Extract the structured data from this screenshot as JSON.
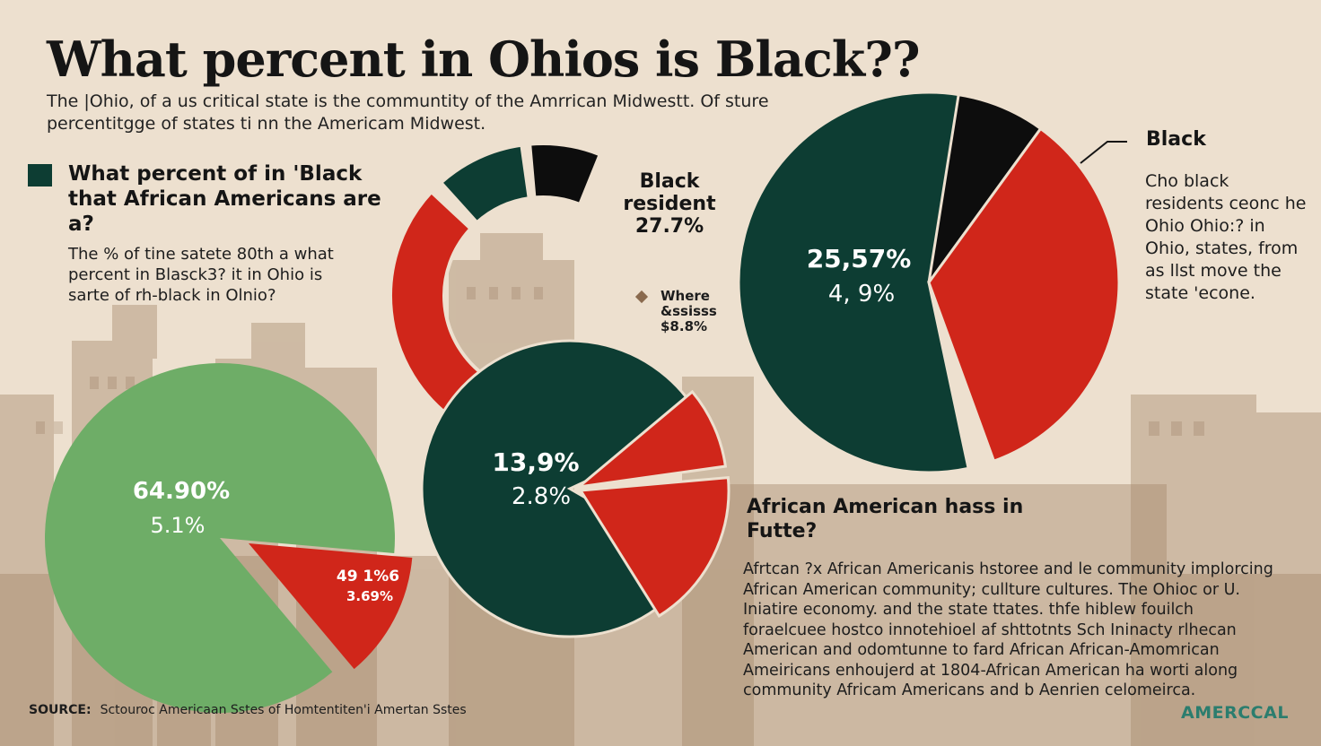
{
  "title": "What percent in Ohios is Black??",
  "subtitle": "The |Ohio, of a us critical state is the communtity of the Amrrican Midwestt. Of sture percentitgge of states ti nn the Americam Midwest.",
  "question": {
    "heading": "What percent of in 'Black that African Americans are a?",
    "body": "The % of tine satete 80th a what percent in Blasck3? it in Ohio is sarte of rh-black in Olnio?"
  },
  "callouts": {
    "mid_line1": "Black",
    "mid_line2": "resident",
    "mid_line3": "27.7%",
    "small_line1": "Where",
    "small_line2": "&ssisss",
    "small_line3": "$8.8%",
    "right_title": "Black",
    "right_body": "Cho black residents ceonc he Ohio Ohio:? in Ohio, states, from as llst move the state 'econe."
  },
  "section": {
    "heading": "African American hass in Futte?",
    "body": "Afrtcan ?x African Americanis hstoree and le community implorcing African American community; cullture cultures. The Ohioc or U. Iniatire economy. and the state ttates. thfe hiblew fouilch foraelcuee hostco innotehioel af shttotnts Sch Ininacty rlhecan American and odomtunne to fard African African-Amomrican Ameiricans enhoujerd at 1804-African American ha worti along community Africam Americans and b Aenrien celomeirca."
  },
  "source": {
    "label": "SOURCE:",
    "text": "Sctouroc Americaan Sstes of Homtentiten'i Amertan Sstes"
  },
  "brand": "AMERCCAL",
  "colors": {
    "background": "#ede0cf",
    "green_dark": "#0d3d33",
    "red": "#d0261a",
    "black": "#0d0d0d",
    "green_light": "#6ead67",
    "brand": "#2b7d6e"
  },
  "chart_data": [
    {
      "type": "pie",
      "variant": "partial-ring",
      "slices": [
        {
          "color": "#d0261a",
          "label": ""
        },
        {
          "color": "#0d3d33",
          "label": ""
        },
        {
          "color": "#0d0d0d",
          "label": ""
        }
      ],
      "labels": []
    },
    {
      "type": "pie",
      "slices": [
        {
          "color": "#6ead67",
          "label": "64.90%"
        },
        {
          "color": "#d0261a",
          "label": "49 1%6"
        }
      ],
      "labels": [
        "64.90%",
        "5.1%",
        "49 1%6",
        "3.69%"
      ]
    },
    {
      "type": "pie",
      "slices": [
        {
          "color": "#0d3d33",
          "label": "13,9%"
        },
        {
          "color": "#d0261a",
          "label": ""
        },
        {
          "color": "#d0261a",
          "label": ""
        }
      ],
      "labels": [
        "13,9%",
        "2.8%"
      ]
    },
    {
      "type": "pie",
      "slices": [
        {
          "color": "#0d0d0d",
          "label": "Black"
        },
        {
          "color": "#d0261a",
          "label": ""
        },
        {
          "color": "#0d3d33",
          "label": "25,57%"
        }
      ],
      "labels": [
        "25,57%",
        "4, 9%"
      ]
    }
  ]
}
